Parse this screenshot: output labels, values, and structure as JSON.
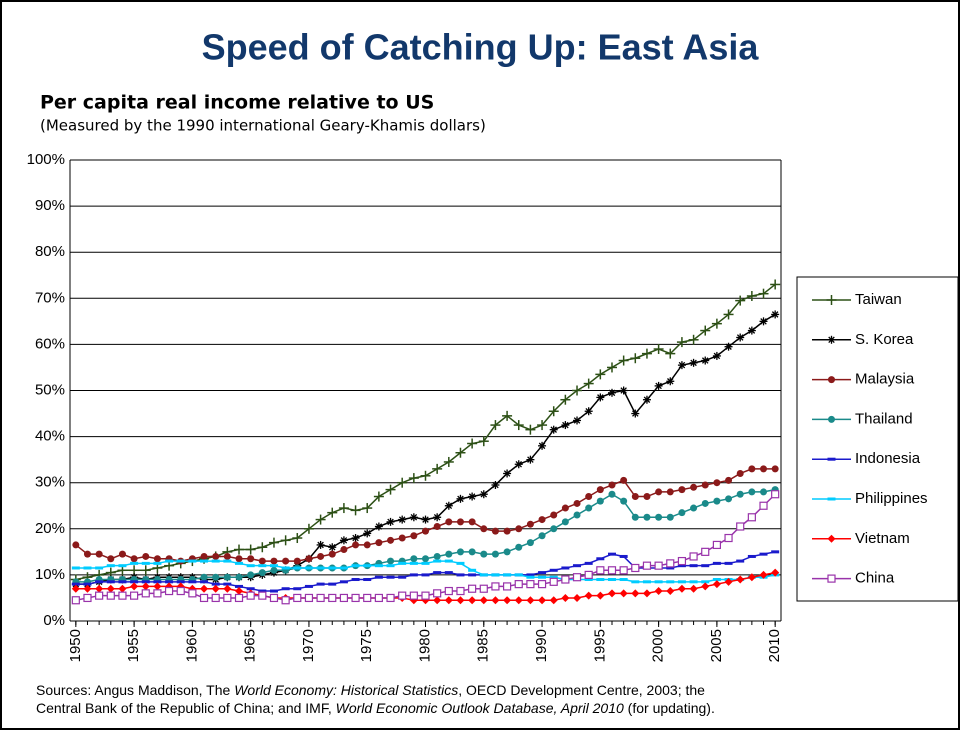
{
  "chart_data": {
    "type": "line",
    "title": "Speed of Catching Up: East Asia",
    "subtitle": "Per capita real income relative to US",
    "note": "(Measured by the 1990 international Geary-Khamis dollars)",
    "footnote": [
      "Sources: Angus Maddison, The ",
      "World Economy: Historical Statistics",
      ", OECD Development Centre, 2003; the",
      "Central Bank of the Republic of China; and IMF, ",
      "World Economic Outlook Database, April 2010",
      " (for updating)."
    ],
    "x": [
      1950,
      1951,
      1952,
      1953,
      1954,
      1955,
      1956,
      1957,
      1958,
      1959,
      1960,
      1961,
      1962,
      1963,
      1964,
      1965,
      1966,
      1967,
      1968,
      1969,
      1970,
      1971,
      1972,
      1973,
      1974,
      1975,
      1976,
      1977,
      1978,
      1979,
      1980,
      1981,
      1982,
      1983,
      1984,
      1985,
      1986,
      1987,
      1988,
      1989,
      1990,
      1991,
      1992,
      1993,
      1994,
      1995,
      1996,
      1997,
      1998,
      1999,
      2000,
      2001,
      2002,
      2003,
      2004,
      2005,
      2006,
      2007,
      2008,
      2009,
      2010
    ],
    "xlim": [
      1949.5,
      2010.5
    ],
    "xticks": [
      1950,
      1955,
      1960,
      1965,
      1970,
      1975,
      1980,
      1985,
      1990,
      1995,
      2000,
      2005,
      2010
    ],
    "ylim": [
      0,
      100
    ],
    "yticks": [
      {
        "value": 0,
        "label": "0%"
      },
      {
        "value": 10,
        "label": "10%"
      },
      {
        "value": 20,
        "label": "20%"
      },
      {
        "value": 30,
        "label": "30%"
      },
      {
        "value": 40,
        "label": "40%"
      },
      {
        "value": 50,
        "label": "50%"
      },
      {
        "value": 60,
        "label": "60%"
      },
      {
        "value": 70,
        "label": "70%"
      },
      {
        "value": 80,
        "label": "80%"
      },
      {
        "value": 90,
        "label": "90%"
      },
      {
        "value": 100,
        "label": "100%"
      }
    ],
    "grid": true,
    "legend": "right",
    "series": [
      {
        "name": "Taiwan",
        "color": "#2d5016",
        "marker": "plus",
        "values": [
          9,
          9.5,
          10,
          10.5,
          11,
          11,
          11,
          11.5,
          12,
          12.5,
          13,
          13.5,
          14,
          15,
          15.5,
          15.5,
          16,
          17,
          17.5,
          18,
          20,
          22,
          23.5,
          24.5,
          24,
          24.5,
          27,
          28.5,
          30,
          31,
          31.5,
          33,
          34.5,
          36.5,
          38.5,
          39,
          42.5,
          44.5,
          42.5,
          41.5,
          42.5,
          45.5,
          48,
          50,
          51.5,
          53.5,
          55,
          56.5,
          57,
          58,
          59,
          58,
          60.5,
          61,
          63,
          64.5,
          66.5,
          69.5,
          70.5,
          71,
          73
        ]
      },
      {
        "name": "S. Korea",
        "color": "#000000",
        "marker": "star",
        "values": [
          8,
          8,
          8.5,
          9,
          9,
          9.5,
          9,
          9.5,
          9.5,
          9.5,
          9.5,
          9,
          9,
          9.5,
          9.5,
          9.5,
          10,
          10.5,
          11,
          12,
          13.5,
          16.5,
          16,
          17.5,
          18,
          19,
          20.5,
          21.5,
          22,
          22.5,
          22,
          22.5,
          25,
          26.5,
          27,
          27.5,
          29.5,
          32,
          34,
          35,
          38,
          41.5,
          42.5,
          43.5,
          45.5,
          48.5,
          49.5,
          50,
          45,
          48,
          51,
          52,
          55.5,
          56,
          56.5,
          57.5,
          59.5,
          61.5,
          63,
          65,
          66.5
        ]
      },
      {
        "name": "Malaysia",
        "color": "#8b1a1a",
        "marker": "circle",
        "values": [
          16.5,
          14.5,
          14.5,
          13.5,
          14.5,
          13.5,
          14,
          13.5,
          13.5,
          13,
          13.5,
          14,
          14,
          14,
          13.5,
          13.5,
          13,
          13,
          13,
          13,
          13.5,
          14,
          14.5,
          15.5,
          16.5,
          16.5,
          17,
          17.5,
          18,
          18.5,
          19.5,
          20.5,
          21.5,
          21.5,
          21.5,
          20,
          19.5,
          19.5,
          20,
          21,
          22,
          23,
          24.5,
          25.5,
          27,
          28.5,
          29.5,
          30.5,
          27,
          27,
          28,
          28,
          28.5,
          29,
          29.5,
          30,
          30.5,
          32,
          33,
          33,
          33
        ]
      },
      {
        "name": "Thailand",
        "color": "#1a8a8a",
        "marker": "circle",
        "values": [
          8.5,
          8.5,
          9,
          9,
          9,
          9,
          9,
          9,
          9,
          9,
          9,
          9.5,
          9.5,
          9.5,
          9.5,
          10,
          10.5,
          11,
          11,
          11.5,
          11.5,
          11.5,
          11.5,
          11.5,
          12,
          12,
          12.5,
          13,
          13,
          13.5,
          13.5,
          14,
          14.5,
          15,
          15,
          14.5,
          14.5,
          15,
          16,
          17,
          18.5,
          20,
          21.5,
          23,
          24.5,
          26,
          27.5,
          26,
          22.5,
          22.5,
          22.5,
          22.5,
          23.5,
          24.5,
          25.5,
          26,
          26.5,
          27.5,
          28,
          28,
          28.5
        ]
      },
      {
        "name": "Indonesia",
        "color": "#1a1acc",
        "marker": "dash",
        "values": [
          8,
          8,
          8.5,
          8.5,
          8.5,
          8.5,
          8.5,
          8.5,
          8.5,
          8.5,
          8.5,
          8.5,
          8,
          8,
          7.5,
          7,
          6.5,
          6.5,
          7,
          7,
          7.5,
          8,
          8,
          8.5,
          9,
          9,
          9.5,
          9.5,
          9.5,
          10,
          10,
          10.5,
          10.5,
          10,
          10,
          10,
          10,
          10,
          10,
          10,
          10.5,
          11,
          11.5,
          12,
          12.5,
          13.5,
          14.5,
          14,
          11.5,
          11.5,
          11.5,
          11.5,
          12,
          12,
          12,
          12.5,
          12.5,
          13,
          14,
          14.5,
          15
        ]
      },
      {
        "name": "Philippines",
        "color": "#00ccff",
        "marker": "dash",
        "values": [
          11.5,
          11.5,
          11.5,
          12,
          12,
          12.5,
          12.5,
          12.5,
          13,
          13,
          13,
          13,
          13,
          13,
          12.5,
          12,
          12,
          12,
          11.5,
          11.5,
          11.5,
          11.5,
          11.5,
          11.5,
          12,
          12,
          12,
          12,
          12.5,
          12.5,
          12.5,
          13,
          13,
          12.5,
          11,
          10,
          10,
          10,
          10,
          9.5,
          9.5,
          9.5,
          9,
          9,
          9,
          9,
          9,
          9,
          8.5,
          8.5,
          8.5,
          8.5,
          8.5,
          8.5,
          8.5,
          9,
          9,
          9,
          9.5,
          9.5,
          10
        ]
      },
      {
        "name": "Vietnam",
        "color": "#ff0000",
        "marker": "diamond",
        "values": [
          7,
          7,
          7,
          7,
          7,
          7.5,
          7.5,
          7.5,
          7.5,
          7.5,
          7,
          7,
          7,
          7,
          6.5,
          6,
          5.5,
          5,
          5,
          5,
          5,
          5,
          5,
          5,
          5,
          5,
          5,
          5,
          5,
          4.5,
          4.5,
          4.5,
          4.5,
          4.5,
          4.5,
          4.5,
          4.5,
          4.5,
          4.5,
          4.5,
          4.5,
          4.5,
          5,
          5,
          5.5,
          5.5,
          6,
          6,
          6,
          6,
          6.5,
          6.5,
          7,
          7,
          7.5,
          8,
          8.5,
          9,
          9.5,
          10,
          10.5
        ]
      },
      {
        "name": "China",
        "color": "#9933aa",
        "marker": "square",
        "values": [
          4.5,
          5,
          5.5,
          5.5,
          5.5,
          5.5,
          6,
          6,
          6.5,
          6.5,
          6,
          5,
          5,
          5,
          5,
          5.5,
          5.5,
          5,
          4.5,
          5,
          5,
          5,
          5,
          5,
          5,
          5,
          5,
          5,
          5.5,
          5.5,
          5.5,
          6,
          6.5,
          6.5,
          7,
          7,
          7.5,
          7.5,
          8,
          8,
          8,
          8.5,
          9,
          9.5,
          10,
          11,
          11,
          11,
          11.5,
          12,
          12,
          12.5,
          13,
          14,
          15,
          16.5,
          18,
          20.5,
          22.5,
          25,
          27.5
        ]
      }
    ]
  }
}
